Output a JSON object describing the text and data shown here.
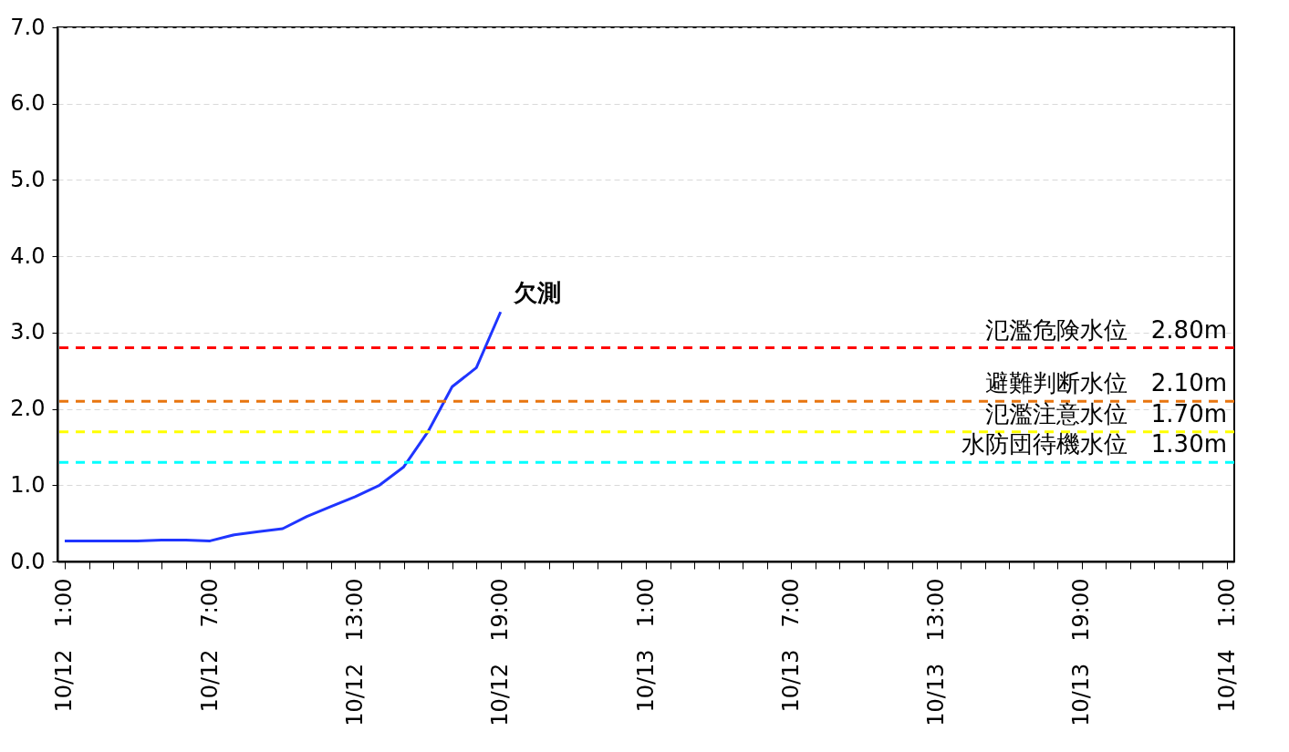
{
  "chart_data": {
    "type": "line",
    "categories": [
      "10/12　1:00",
      null,
      null,
      null,
      null,
      null,
      "10/12　7:00",
      null,
      null,
      null,
      null,
      null,
      "10/12　13:00",
      null,
      null,
      null,
      null,
      null,
      "10/12　19:00",
      null,
      null,
      null,
      null,
      null,
      "10/13　1:00",
      null,
      null,
      null,
      null,
      null,
      "10/13　7:00",
      null,
      null,
      null,
      null,
      null,
      "10/13　13:00",
      null,
      null,
      null,
      null,
      null,
      "10/13　19:00",
      null,
      null,
      null,
      null,
      null,
      "10/14　1:00"
    ],
    "series": [
      {
        "color": "#1f35ff",
        "values": [
          0.27,
          0.27,
          0.27,
          0.27,
          0.28,
          0.28,
          0.27,
          0.35,
          0.39,
          0.43,
          0.59,
          0.72,
          0.85,
          1.0,
          1.24,
          1.7,
          2.29,
          2.54,
          3.27,
          null,
          null,
          null,
          null,
          null,
          null,
          null,
          null,
          null,
          null,
          null,
          null,
          null,
          null,
          null,
          null,
          null,
          null,
          null,
          null,
          null,
          null,
          null,
          null,
          null,
          null,
          null,
          null,
          null,
          null
        ]
      }
    ],
    "ylim": [
      0,
      7
    ],
    "yticks": [
      {
        "value": 0,
        "label": "0.0"
      },
      {
        "value": 1,
        "label": "1.0"
      },
      {
        "value": 2,
        "label": "2.0"
      },
      {
        "value": 3,
        "label": "3.0"
      },
      {
        "value": 4,
        "label": "4.0"
      },
      {
        "value": 5,
        "label": "5.0"
      },
      {
        "value": 6,
        "label": "6.0"
      },
      {
        "value": 7,
        "label": "7.0"
      }
    ],
    "grid": "y",
    "ref_lines": [
      {
        "axis": "y",
        "value": 2.8,
        "label": "氾濫危険水位　2.80m",
        "color": "#ff0000",
        "line_style": "dashed"
      },
      {
        "axis": "y",
        "value": 2.1,
        "label": "避難判断水位　2.10m",
        "color": "#e8750f",
        "line_style": "dashed"
      },
      {
        "axis": "y",
        "value": 1.7,
        "label": "氾濫注意水位　1.70m",
        "color": "#ffff00",
        "line_style": "dashed"
      },
      {
        "axis": "y",
        "value": 1.3,
        "label": "水防団待機水位　1.30m",
        "color": "#00ffff",
        "line_style": "dashed"
      }
    ],
    "annotations": [
      "欠測"
    ]
  }
}
